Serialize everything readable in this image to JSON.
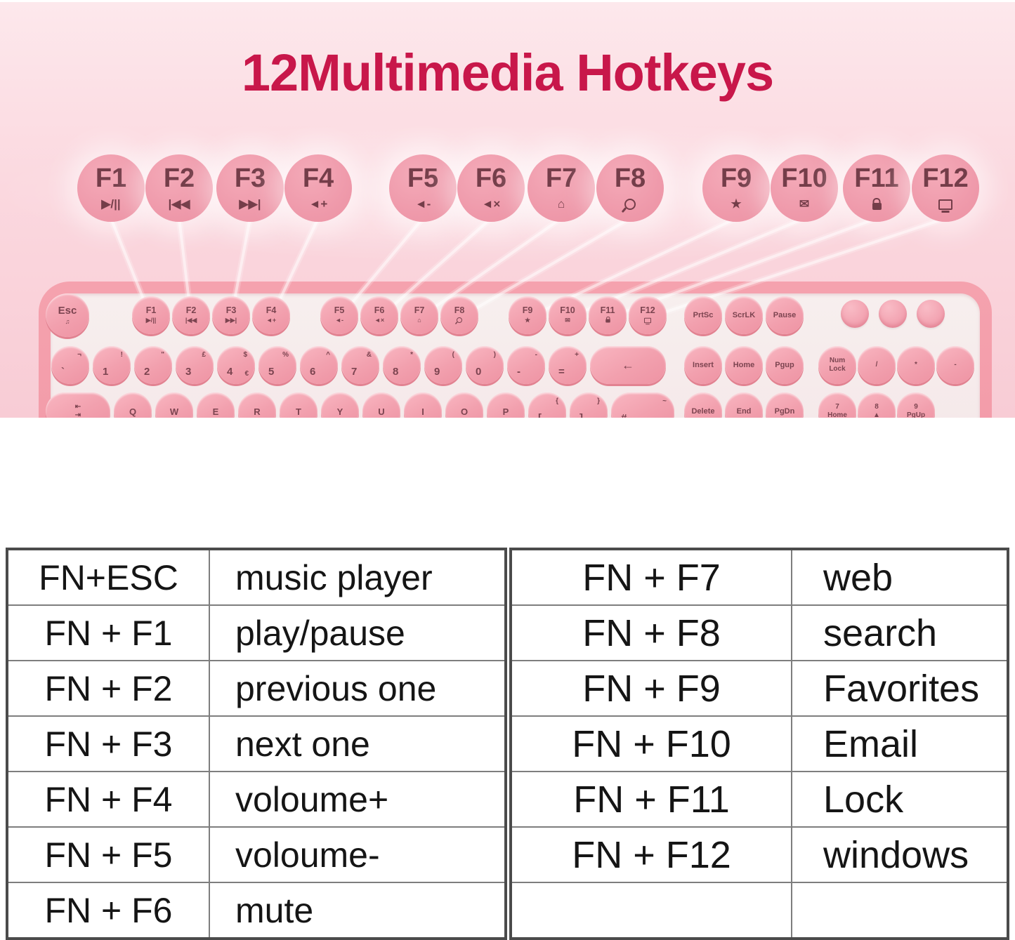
{
  "title": "12Multimedia Hotkeys",
  "colors": {
    "title_red": "#c8174a",
    "background_pink": "#fbd8df",
    "key_pink": "#f09cac",
    "key_text_maroon": "#7c4450",
    "table_border_gray": "#4b4b4b"
  },
  "hotkeys": [
    {
      "label": "F1",
      "icon_name": "play-pause-icon",
      "glyph": "▶/||"
    },
    {
      "label": "F2",
      "icon_name": "previous-track-icon",
      "glyph": "|◀◀"
    },
    {
      "label": "F3",
      "icon_name": "next-track-icon",
      "glyph": "▶▶|"
    },
    {
      "label": "F4",
      "icon_name": "volume-up-icon",
      "glyph": "◄+"
    },
    {
      "label": "F5",
      "icon_name": "volume-down-icon",
      "glyph": "◄-"
    },
    {
      "label": "F6",
      "icon_name": "mute-icon",
      "glyph": "◄×"
    },
    {
      "label": "F7",
      "icon_name": "home-icon",
      "glyph": "⌂"
    },
    {
      "label": "F8",
      "icon_name": "search-icon",
      "glyph": "",
      "shape": "search"
    },
    {
      "label": "F9",
      "icon_name": "star-icon",
      "glyph": "★"
    },
    {
      "label": "F10",
      "icon_name": "email-icon",
      "glyph": "✉"
    },
    {
      "label": "F11",
      "icon_name": "lock-icon",
      "glyph": "",
      "shape": "lock"
    },
    {
      "label": "F12",
      "icon_name": "monitor-icon",
      "glyph": "",
      "shape": "monitor"
    }
  ],
  "keyboard": {
    "esc": {
      "label": "Esc",
      "icon_name": "music-note-icon",
      "glyph": "♫"
    },
    "fkeys": [
      {
        "label": "F1",
        "icon_name": "play-pause-icon",
        "glyph": "▶/||"
      },
      {
        "label": "F2",
        "icon_name": "previous-track-icon",
        "glyph": "|◀◀"
      },
      {
        "label": "F3",
        "icon_name": "next-track-icon",
        "glyph": "▶▶|"
      },
      {
        "label": "F4",
        "icon_name": "volume-up-icon",
        "glyph": "◄+"
      },
      {
        "label": "F5",
        "icon_name": "volume-down-icon",
        "glyph": "◄-"
      },
      {
        "label": "F6",
        "icon_name": "mute-icon",
        "glyph": "◄×"
      },
      {
        "label": "F7",
        "icon_name": "home-icon",
        "glyph": "⌂"
      },
      {
        "label": "F8",
        "icon_name": "search-icon",
        "glyph": "",
        "shape": "search"
      },
      {
        "label": "F9",
        "icon_name": "star-icon",
        "glyph": "★"
      },
      {
        "label": "F10",
        "icon_name": "email-icon",
        "glyph": "✉"
      },
      {
        "label": "F11",
        "icon_name": "lock-icon",
        "glyph": "",
        "shape": "lock"
      },
      {
        "label": "F12",
        "icon_name": "monitor-icon",
        "glyph": "",
        "shape": "monitor"
      }
    ],
    "number_row": [
      {
        "shift": "¬",
        "main": "`"
      },
      {
        "main": "1",
        "shift": "!"
      },
      {
        "main": "2",
        "shift": "\""
      },
      {
        "main": "3",
        "shift": "£"
      },
      {
        "main": "4",
        "shift": "$",
        "extra": "€"
      },
      {
        "main": "5",
        "shift": "%"
      },
      {
        "main": "6",
        "shift": "^"
      },
      {
        "main": "7",
        "shift": "&"
      },
      {
        "main": "8",
        "shift": "*"
      },
      {
        "main": "9",
        "shift": "("
      },
      {
        "main": "0",
        "shift": ")"
      },
      {
        "shift": "-",
        "main": "-"
      },
      {
        "shift": "+",
        "main": "="
      },
      {
        "type": "backspace",
        "label": "←"
      }
    ],
    "letter_row": [
      {
        "type": "tab",
        "top": "⇤",
        "bottom": "⇥"
      },
      "Q",
      "W",
      "E",
      "R",
      "T",
      "Y",
      "U",
      "I",
      "O",
      "P",
      {
        "shift": "{",
        "main": "["
      },
      {
        "shift": "}",
        "main": "]"
      },
      {
        "type": "hash",
        "shift": "~",
        "main": "#"
      }
    ],
    "nav": [
      [
        "PrtSc",
        "ScrLK",
        "Pause"
      ],
      [
        "Insert",
        "Home",
        "Pgup"
      ],
      [
        "Delete",
        "End",
        "PgDn"
      ]
    ],
    "numpad": {
      "indicator_count": 3,
      "row1": [
        "Num\nLock",
        "/",
        "*",
        "-"
      ],
      "row2": [
        "7\nHome",
        "8\n▲",
        "9\nPgUp"
      ]
    }
  },
  "tables": {
    "left": {
      "rows": [
        [
          "FN+ESC",
          "music player"
        ],
        [
          "FN + F1",
          "play/pause"
        ],
        [
          "FN + F2",
          "previous one"
        ],
        [
          "FN + F3",
          "next one"
        ],
        [
          "FN + F4",
          "voloume+"
        ],
        [
          "FN + F5",
          "voloume-"
        ],
        [
          "FN + F6",
          "mute"
        ]
      ]
    },
    "right": {
      "rows": [
        [
          "FN + F7",
          "web"
        ],
        [
          "FN + F8",
          "search"
        ],
        [
          "FN + F9",
          "Favorites"
        ],
        [
          "FN + F10",
          "Email"
        ],
        [
          "FN + F11",
          "Lock"
        ],
        [
          "FN + F12",
          "windows"
        ],
        [
          "",
          ""
        ]
      ]
    }
  }
}
